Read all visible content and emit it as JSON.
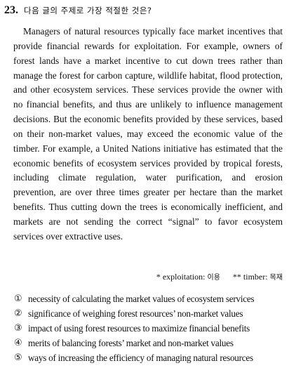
{
  "question": {
    "number": "23.",
    "prompt": "다음 글의 주제로 가장 적절한 것은?"
  },
  "passage": "Managers of natural resources typically face market incentives that provide financial rewards for exploitation. For example, owners of forest lands have a market incentive to cut down trees rather than manage the forest for carbon capture, wildlife habitat, flood protection, and other ecosystem services. These services provide the owner with no financial benefits, and thus are unlikely to influence management decisions. But the economic benefits provided by these services, based on their non-market values, may exceed the economic value of the timber. For example, a United Nations initiative has estimated that the economic benefits of ecosystem services provided by tropical forests, including climate regulation, water purification, and erosion prevention, are over three times greater per hectare than the market benefits. Thus cutting down the trees is economically inefficient, and markets are not sending the correct “signal” to favor ecosystem services over extractive uses.",
  "footnotes": [
    {
      "marker": "*",
      "term": "exploitation:",
      "gloss": "이용"
    },
    {
      "marker": "**",
      "term": "timber:",
      "gloss": "목재"
    }
  ],
  "choices": [
    {
      "num": "①",
      "text": "necessity of calculating the market values of ecosystem services"
    },
    {
      "num": "②",
      "text": "significance of weighing forest resources’ non-market values"
    },
    {
      "num": "③",
      "text": "impact of using forest resources to maximize financial benefits"
    },
    {
      "num": "④",
      "text": "merits of balancing forests’ market and non-market values"
    },
    {
      "num": "⑤",
      "text": "ways of increasing the efficiency of managing natural resources"
    }
  ]
}
